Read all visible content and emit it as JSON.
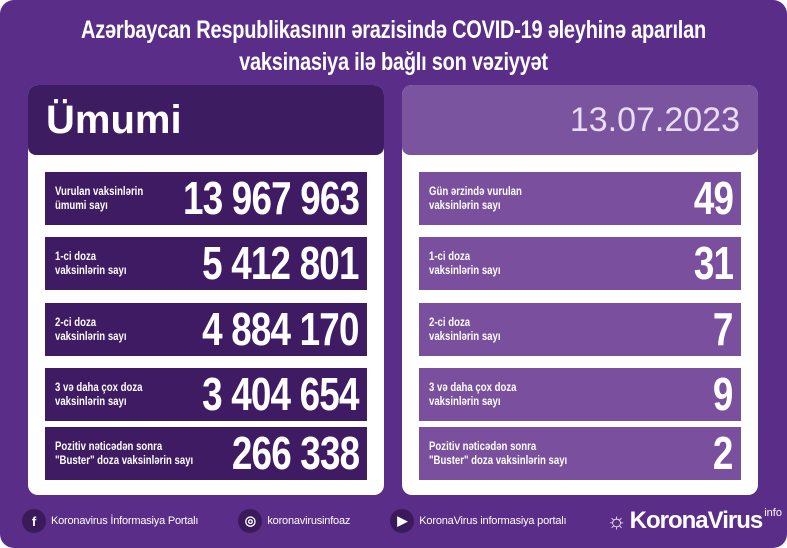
{
  "title": {
    "line1": "Azərbaycan Respublikasının ərazisində COVID-19 əleyhinə aparılan",
    "line2": "vaksinasiya ilə bağlı son vəziyyət"
  },
  "left": {
    "header": "Ümumi",
    "rows": [
      {
        "l1": "Vurulan vaksinlərin",
        "l2": "ümumi sayı",
        "value": "13 967 963"
      },
      {
        "l1": "1-ci doza",
        "l2": "vaksinlərin sayı",
        "value": "5 412 801"
      },
      {
        "l1": "2-ci doza",
        "l2": "vaksinlərin sayı",
        "value": "4 884 170"
      },
      {
        "l1": "3 və daha çox doza",
        "l2": "vaksinlərin sayı",
        "value": "3 404 654"
      },
      {
        "l1": "Pozitiv nəticədən sonra",
        "l2": "\"Buster\" doza vaksinlərin sayı",
        "value": "266 338"
      }
    ]
  },
  "right": {
    "header": "13.07.2023",
    "rows": [
      {
        "l1": "Gün ərzində vurulan",
        "l2": "vaksinlərin sayı",
        "value": "49"
      },
      {
        "l1": "1-ci doza",
        "l2": "vaksinlərin sayı",
        "value": "31"
      },
      {
        "l1": "2-ci doza",
        "l2": "vaksinlərin sayı",
        "value": "7"
      },
      {
        "l1": "3 və daha çox doza",
        "l2": "vaksinlərin sayı",
        "value": "9"
      },
      {
        "l1": "Pozitiv nəticədən sonra",
        "l2": "\"Buster\" doza vaksinlərin sayı",
        "value": "2"
      }
    ]
  },
  "footer": {
    "facebook": "Koronavirus İnformasiya Portalı",
    "instagram": "koronavirusinfoaz",
    "youtube": "KoronaVirus informasiya portalı",
    "logo": "KoronaVirus",
    "logo_sup": "info"
  },
  "colors": {
    "background": "#5a2d88",
    "left_cards": "#3f1b63",
    "right_cards": "#7a509e"
  }
}
